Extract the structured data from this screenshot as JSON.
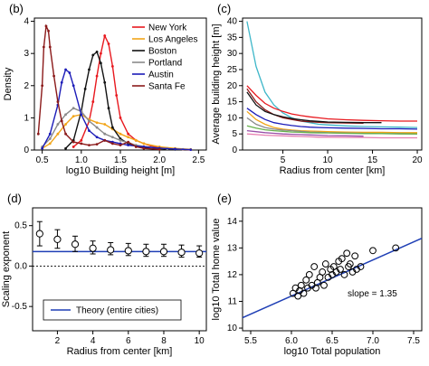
{
  "colors": {
    "new_york": "#e8191f",
    "los_angeles": "#f2a519",
    "boston": "#111111",
    "portland": "#8a8a8a",
    "austin": "#1c1cb8",
    "santa_fe": "#8b1a1a",
    "extra_teal": "#3fb7c9",
    "extra_pink": "#e87fb1",
    "extra_green": "#66b04a",
    "extra_purple": "#9a4fa8",
    "theory_line": "#1f3fb5"
  },
  "chart_data": [
    {
      "panel": "b",
      "type": "line",
      "title": "(b)",
      "xlabel": "log10 Building height [m]",
      "ylabel": "Density",
      "xlim": [
        0.4,
        2.6
      ],
      "ylim": [
        0,
        4.1
      ],
      "xticks": [
        "0.5",
        "1.0",
        "1.5",
        "2.0",
        "2.5"
      ],
      "yticks": [
        "0",
        "1",
        "2",
        "3",
        "4"
      ],
      "legend_position": "top-right",
      "series": [
        {
          "name": "New York",
          "color_key": "new_york",
          "x": [
            0.9,
            1.0,
            1.1,
            1.15,
            1.2,
            1.25,
            1.3,
            1.35,
            1.4,
            1.45,
            1.5,
            1.6,
            1.7,
            1.8,
            1.9,
            2.0,
            2.1,
            2.2,
            2.3,
            2.4
          ],
          "y": [
            0.1,
            0.3,
            0.9,
            1.5,
            2.3,
            3.0,
            3.55,
            3.3,
            2.6,
            1.7,
            1.0,
            0.5,
            0.3,
            0.2,
            0.12,
            0.08,
            0.05,
            0.04,
            0.02,
            0.01
          ]
        },
        {
          "name": "Los Angeles",
          "color_key": "los_angeles",
          "x": [
            0.5,
            0.6,
            0.7,
            0.8,
            0.9,
            1.0,
            1.1,
            1.2,
            1.3,
            1.4,
            1.5,
            1.6,
            1.7,
            1.8,
            2.0,
            2.2,
            2.4
          ],
          "y": [
            0.05,
            0.2,
            0.5,
            0.8,
            1.05,
            1.1,
            0.95,
            0.85,
            0.8,
            0.65,
            0.5,
            0.4,
            0.3,
            0.2,
            0.1,
            0.05,
            0.02
          ]
        },
        {
          "name": "Boston",
          "color_key": "boston",
          "x": [
            0.8,
            0.9,
            1.0,
            1.05,
            1.1,
            1.15,
            1.2,
            1.25,
            1.3,
            1.35,
            1.4,
            1.5,
            1.6,
            1.7,
            1.8,
            2.0,
            2.2
          ],
          "y": [
            0.05,
            0.3,
            1.2,
            1.9,
            2.5,
            2.95,
            3.05,
            2.7,
            2.1,
            1.3,
            0.7,
            0.35,
            0.2,
            0.12,
            0.08,
            0.04,
            0.02
          ]
        },
        {
          "name": "Portland",
          "color_key": "portland",
          "x": [
            0.5,
            0.6,
            0.7,
            0.8,
            0.9,
            1.0,
            1.1,
            1.2,
            1.3,
            1.4,
            1.5,
            1.7,
            1.9,
            2.1,
            2.3
          ],
          "y": [
            0.1,
            0.35,
            0.8,
            1.1,
            1.3,
            1.2,
            0.9,
            0.7,
            0.5,
            0.4,
            0.3,
            0.15,
            0.08,
            0.04,
            0.02
          ]
        },
        {
          "name": "Austin",
          "color_key": "austin",
          "x": [
            0.5,
            0.6,
            0.7,
            0.75,
            0.8,
            0.85,
            0.9,
            1.0,
            1.1,
            1.2,
            1.3,
            1.4,
            1.5,
            1.6,
            1.8,
            2.0,
            2.2,
            2.4
          ],
          "y": [
            0.05,
            0.5,
            1.4,
            2.1,
            2.5,
            2.4,
            2.0,
            1.1,
            0.6,
            0.4,
            0.3,
            0.25,
            0.2,
            0.15,
            0.1,
            0.06,
            0.03,
            0.01
          ]
        },
        {
          "name": "Santa Fe",
          "color_key": "santa_fe",
          "x": [
            0.45,
            0.5,
            0.52,
            0.55,
            0.58,
            0.6,
            0.65,
            0.7,
            0.75,
            0.8,
            0.9,
            1.0,
            1.1,
            1.2,
            1.3,
            1.4,
            1.5,
            1.6,
            1.7,
            1.8,
            2.0
          ],
          "y": [
            0.5,
            2.0,
            3.2,
            3.85,
            3.7,
            3.2,
            2.3,
            1.5,
            0.9,
            0.5,
            0.25,
            0.2,
            0.15,
            0.18,
            0.3,
            0.2,
            0.15,
            0.25,
            0.1,
            0.05,
            0.02
          ]
        }
      ]
    },
    {
      "panel": "c",
      "type": "line",
      "title": "(c)",
      "xlabel": "Radius from center [km]",
      "ylabel": "Average building height [m]",
      "xlim": [
        0.5,
        20.5
      ],
      "ylim": [
        0,
        41
      ],
      "xticks": [
        "5",
        "10",
        "15",
        "20"
      ],
      "yticks": [
        "0",
        "5",
        "10",
        "15",
        "20",
        "25",
        "30",
        "35",
        "40"
      ],
      "x": [
        1,
        2,
        3,
        4,
        5,
        6,
        7,
        8,
        9,
        10,
        12,
        14,
        16,
        18,
        20
      ],
      "series": [
        {
          "color_key": "extra_teal",
          "y": [
            40,
            26,
            18,
            14,
            11.5,
            10,
            9,
            8.5,
            8,
            7.8,
            7.5,
            7.3,
            7.2,
            7.1,
            7
          ]
        },
        {
          "color_key": "new_york",
          "y": [
            20,
            17,
            14.5,
            13,
            12,
            11.2,
            10.7,
            10.3,
            10,
            9.7,
            9.4,
            9.2,
            9.1,
            9,
            9
          ]
        },
        {
          "color_key": "santa_fe",
          "y": [
            19,
            15,
            12.5,
            11,
            10,
            9.5,
            9,
            8.8,
            8.6,
            8.5,
            8.4,
            8.3,
            null,
            null,
            null
          ]
        },
        {
          "color_key": "boston",
          "y": [
            18,
            14,
            12,
            11,
            10.3,
            9.8,
            9.4,
            9.1,
            8.9,
            8.7,
            8.6,
            8.5,
            8.5,
            null,
            null
          ]
        },
        {
          "color_key": "austin",
          "y": [
            13,
            11,
            9.5,
            8.5,
            8,
            7.6,
            7.3,
            7.1,
            7,
            6.9,
            6.8,
            6.7,
            6.6,
            6.6,
            6.5
          ]
        },
        {
          "color_key": "los_angeles",
          "y": [
            12,
            9.5,
            8,
            7,
            6.5,
            6.2,
            6,
            5.9,
            5.8,
            5.7,
            5.6,
            5.5,
            5.5,
            5.4,
            5.4
          ]
        },
        {
          "color_key": "portland",
          "y": [
            10,
            8,
            7,
            6.5,
            6.2,
            6,
            5.8,
            5.6,
            5.5,
            5.4,
            5.3,
            5.2,
            5.1,
            5.1,
            5
          ]
        },
        {
          "color_key": "extra_green",
          "y": [
            7.5,
            6.8,
            6.3,
            6,
            5.8,
            5.6,
            5.5,
            5.4,
            5.3,
            5.3,
            5.2,
            5.1,
            5.1,
            5,
            5
          ]
        },
        {
          "color_key": "extra_purple",
          "y": [
            6,
            5.7,
            5.4,
            5.2,
            5,
            4.9,
            4.8,
            4.7,
            4.6,
            4.5,
            4.4,
            4.3,
            null,
            null,
            null
          ]
        },
        {
          "color_key": "extra_pink",
          "y": [
            5,
            4.8,
            4.6,
            4.5,
            4.4,
            4.3,
            4.2,
            4.1,
            4,
            4,
            3.9,
            3.9,
            3.8,
            3.8,
            3.8
          ]
        }
      ]
    },
    {
      "panel": "d",
      "type": "scatter",
      "title": "(d)",
      "xlabel": "Radius from center [km]",
      "ylabel": "Scaling exponent",
      "xlim": [
        0.6,
        10.4
      ],
      "ylim": [
        -0.8,
        0.72
      ],
      "xticks": [
        "2",
        "4",
        "6",
        "8",
        "10"
      ],
      "yticks": [
        "-0.5",
        "0.0",
        "0.5"
      ],
      "x": [
        1,
        2,
        3,
        4,
        5,
        6,
        7,
        8,
        9,
        10
      ],
      "y": [
        0.4,
        0.33,
        0.27,
        0.22,
        0.2,
        0.19,
        0.18,
        0.18,
        0.17,
        0.16
      ],
      "yerr_low": [
        0.25,
        0.22,
        0.18,
        0.15,
        0.14,
        0.13,
        0.12,
        0.12,
        0.11,
        0.11
      ],
      "yerr_high": [
        0.55,
        0.45,
        0.37,
        0.31,
        0.29,
        0.28,
        0.27,
        0.27,
        0.26,
        0.25
      ],
      "theory_value": 0.18,
      "reference_value": 0.0,
      "legend_label": "Theory (entire cities)",
      "legend_position": "bottom-left"
    },
    {
      "panel": "e",
      "type": "scatter",
      "title": "(e)",
      "xlabel": "log10 Total population",
      "ylabel": "log10 Total home value",
      "xlim": [
        5.4,
        7.6
      ],
      "ylim": [
        9.9,
        14.5
      ],
      "xticks": [
        "5.5",
        "6.0",
        "6.5",
        "7.0",
        "7.5"
      ],
      "yticks": [
        "10",
        "11",
        "12",
        "13",
        "14"
      ],
      "annotation": "slope = 1.35",
      "fit": {
        "slope": 1.35,
        "intercept": 3.1
      },
      "x": [
        6.02,
        6.05,
        6.08,
        6.1,
        6.12,
        6.15,
        6.18,
        6.2,
        6.22,
        6.25,
        6.28,
        6.3,
        6.32,
        6.35,
        6.38,
        6.4,
        6.42,
        6.45,
        6.48,
        6.5,
        6.52,
        6.55,
        6.58,
        6.6,
        6.62,
        6.65,
        6.68,
        6.7,
        6.72,
        6.75,
        6.78,
        6.8,
        6.85,
        7.0,
        7.28
      ],
      "y": [
        11.3,
        11.5,
        11.2,
        11.4,
        11.6,
        11.3,
        11.8,
        11.5,
        12.0,
        11.6,
        12.3,
        11.5,
        11.7,
        11.9,
        12.1,
        11.6,
        12.4,
        11.9,
        12.2,
        12.0,
        12.3,
        12.1,
        12.5,
        12.2,
        12.6,
        12.0,
        12.8,
        12.3,
        12.4,
        12.1,
        12.7,
        12.2,
        12.3,
        12.9,
        13.0
      ]
    }
  ]
}
